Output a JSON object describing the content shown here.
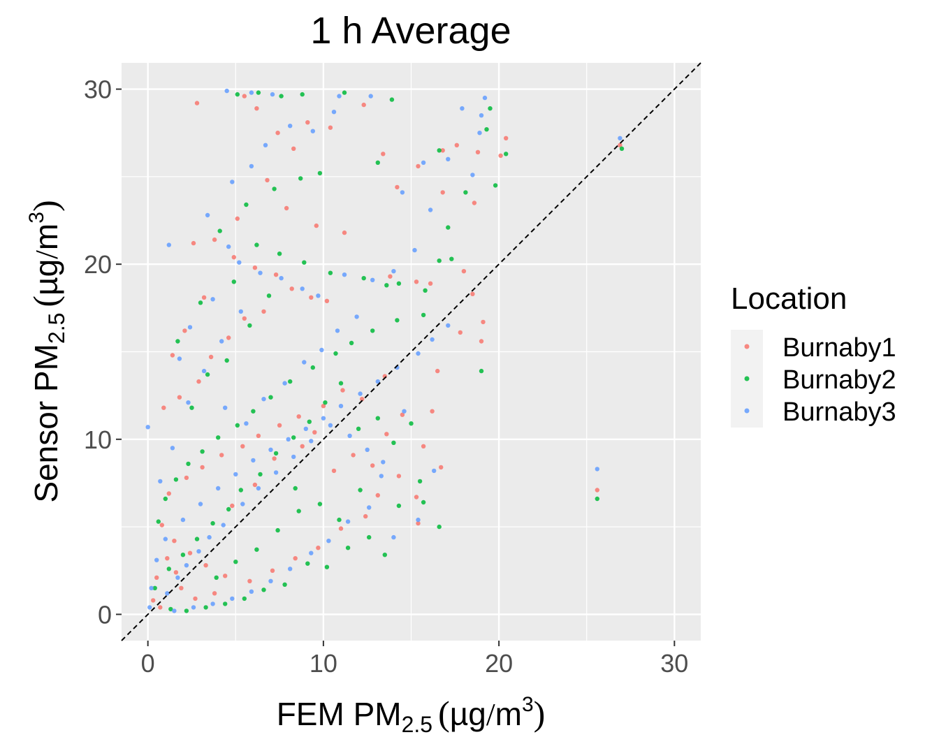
{
  "chart_data": {
    "type": "scatter",
    "title": "1 h Average",
    "xlabel": {
      "prefix": "FEM PM",
      "sub": "2.5",
      "unit_open": "(",
      "unit_body": "µg",
      "unit_slash": "/",
      "unit_base": "m",
      "unit_sup": "3",
      "unit_close": ")"
    },
    "ylabel": {
      "prefix": "Sensor PM",
      "sub": "2.5",
      "unit_open": "(",
      "unit_body": "µg",
      "unit_slash": "/",
      "unit_base": "m",
      "unit_sup": "3",
      "unit_close": ")"
    },
    "xlim": [
      -1.5,
      31.5
    ],
    "ylim": [
      -1.5,
      31.5
    ],
    "x_ticks": [
      0,
      10,
      20,
      30
    ],
    "y_ticks": [
      0,
      10,
      20,
      30
    ],
    "x_tick_labels": [
      "0",
      "10",
      "20",
      "30"
    ],
    "y_tick_labels": [
      "0",
      "10",
      "20",
      "30"
    ],
    "grid": true,
    "reference_line": {
      "slope": 1,
      "intercept": 0,
      "style": "dashed",
      "color": "#000000"
    },
    "legend": {
      "title": "Location",
      "placement": "right",
      "entries": [
        "Burnaby1",
        "Burnaby2",
        "Burnaby3"
      ]
    },
    "series": [
      {
        "name": "Burnaby1",
        "color": "#F8766D",
        "points": [
          [
            2.8,
            29.2
          ],
          [
            5.5,
            29.6
          ],
          [
            6.2,
            28.9
          ],
          [
            7.4,
            27.5
          ],
          [
            8.3,
            26.6
          ],
          [
            9.1,
            28.1
          ],
          [
            10.4,
            27.8
          ],
          [
            12.3,
            29.1
          ],
          [
            13.4,
            26.3
          ],
          [
            17.6,
            26.8
          ],
          [
            18.8,
            26.4
          ],
          [
            20.4,
            27.2
          ],
          [
            20.1,
            26.2
          ],
          [
            16.8,
            26.5
          ],
          [
            15.4,
            25.6
          ],
          [
            14.2,
            24.4
          ],
          [
            16.8,
            24.1
          ],
          [
            18.6,
            23.5
          ],
          [
            6.8,
            24.8
          ],
          [
            7.9,
            23.2
          ],
          [
            9.6,
            22.2
          ],
          [
            11.2,
            21.8
          ],
          [
            5.1,
            22.6
          ],
          [
            3.8,
            21.4
          ],
          [
            2.6,
            21.2
          ],
          [
            4.9,
            20.4
          ],
          [
            6.1,
            19.8
          ],
          [
            7.3,
            19.4
          ],
          [
            8.2,
            18.6
          ],
          [
            9.3,
            18.1
          ],
          [
            10.2,
            17.9
          ],
          [
            13.8,
            19.3
          ],
          [
            15.3,
            19.0
          ],
          [
            16.1,
            18.9
          ],
          [
            18.0,
            19.6
          ],
          [
            18.5,
            18.3
          ],
          [
            17.8,
            16.1
          ],
          [
            19.1,
            16.7
          ],
          [
            19.0,
            15.6
          ],
          [
            16.5,
            13.9
          ],
          [
            16.2,
            11.6
          ],
          [
            15.7,
            9.6
          ],
          [
            15.3,
            6.7
          ],
          [
            15.4,
            5.2
          ],
          [
            16.7,
            8.4
          ],
          [
            13.5,
            13.6
          ],
          [
            12.2,
            12.3
          ],
          [
            11.1,
            12.8
          ],
          [
            10.0,
            11.9
          ],
          [
            8.6,
            11.3
          ],
          [
            7.5,
            10.8
          ],
          [
            6.3,
            10.2
          ],
          [
            5.4,
            9.6
          ],
          [
            4.2,
            9.1
          ],
          [
            3.1,
            8.4
          ],
          [
            2.2,
            7.8
          ],
          [
            1.2,
            6.9
          ],
          [
            0.8,
            5.1
          ],
          [
            1.5,
            4.2
          ],
          [
            2.4,
            3.5
          ],
          [
            3.3,
            2.8
          ],
          [
            4.4,
            2.2
          ],
          [
            5.8,
            1.9
          ],
          [
            7.1,
            2.5
          ],
          [
            8.4,
            3.2
          ],
          [
            9.7,
            3.8
          ],
          [
            11.0,
            4.9
          ],
          [
            12.4,
            5.6
          ],
          [
            13.1,
            6.8
          ],
          [
            14.3,
            7.9
          ],
          [
            1.8,
            12.4
          ],
          [
            2.9,
            13.3
          ],
          [
            3.6,
            14.7
          ],
          [
            4.6,
            15.8
          ],
          [
            5.5,
            16.9
          ],
          [
            6.6,
            17.3
          ],
          [
            3.2,
            18.1
          ],
          [
            2.1,
            16.2
          ],
          [
            1.4,
            14.8
          ],
          [
            0.9,
            11.8
          ],
          [
            25.6,
            7.1
          ],
          [
            26.9,
            26.8
          ],
          [
            0.5,
            2.1
          ],
          [
            1.1,
            3.2
          ],
          [
            1.9,
            1.5
          ],
          [
            2.7,
            0.9
          ],
          [
            3.8,
            1.2
          ],
          [
            0.3,
            0.8
          ],
          [
            0.7,
            0.4
          ],
          [
            1.6,
            2.4
          ],
          [
            4.8,
            6.2
          ],
          [
            6.1,
            7.4
          ],
          [
            7.2,
            8.9
          ],
          [
            8.8,
            9.6
          ],
          [
            9.5,
            10.4
          ],
          [
            10.6,
            8.2
          ],
          [
            11.7,
            9.1
          ],
          [
            12.8,
            8.5
          ],
          [
            13.6,
            10.3
          ],
          [
            14.5,
            11.4
          ]
        ]
      },
      {
        "name": "Burnaby2",
        "color": "#00BA38",
        "points": [
          [
            5.1,
            29.7
          ],
          [
            6.3,
            29.8
          ],
          [
            7.6,
            29.6
          ],
          [
            8.8,
            29.7
          ],
          [
            11.2,
            29.8
          ],
          [
            13.9,
            29.4
          ],
          [
            19.5,
            28.9
          ],
          [
            19.3,
            27.7
          ],
          [
            16.6,
            26.5
          ],
          [
            20.4,
            26.3
          ],
          [
            19.8,
            24.5
          ],
          [
            18.1,
            24.1
          ],
          [
            17.1,
            22.1
          ],
          [
            13.1,
            25.8
          ],
          [
            9.8,
            25.2
          ],
          [
            8.7,
            24.9
          ],
          [
            7.2,
            24.3
          ],
          [
            5.6,
            23.4
          ],
          [
            4.1,
            21.9
          ],
          [
            6.2,
            21.1
          ],
          [
            7.5,
            20.6
          ],
          [
            8.9,
            20.1
          ],
          [
            10.4,
            19.5
          ],
          [
            12.3,
            19.2
          ],
          [
            13.6,
            18.8
          ],
          [
            14.3,
            18.9
          ],
          [
            15.8,
            18.5
          ],
          [
            16.6,
            20.2
          ],
          [
            17.3,
            20.3
          ],
          [
            15.7,
            17.1
          ],
          [
            14.2,
            16.8
          ],
          [
            12.8,
            16.2
          ],
          [
            11.6,
            15.5
          ],
          [
            10.7,
            14.9
          ],
          [
            9.4,
            14.1
          ],
          [
            8.1,
            13.3
          ],
          [
            7.0,
            12.4
          ],
          [
            6.0,
            11.6
          ],
          [
            5.1,
            10.8
          ],
          [
            4.0,
            10.1
          ],
          [
            3.1,
            9.3
          ],
          [
            2.3,
            8.6
          ],
          [
            1.6,
            7.7
          ],
          [
            1.0,
            6.6
          ],
          [
            0.6,
            5.3
          ],
          [
            19.0,
            13.9
          ],
          [
            16.6,
            5.0
          ],
          [
            15.7,
            6.4
          ],
          [
            15.5,
            7.6
          ],
          [
            14.3,
            6.2
          ],
          [
            13.5,
            3.4
          ],
          [
            12.6,
            4.4
          ],
          [
            11.4,
            3.8
          ],
          [
            10.2,
            2.7
          ],
          [
            9.1,
            2.9
          ],
          [
            7.8,
            1.7
          ],
          [
            6.6,
            1.4
          ],
          [
            5.5,
            0.9
          ],
          [
            4.4,
            0.6
          ],
          [
            3.3,
            0.4
          ],
          [
            2.2,
            0.2
          ],
          [
            1.3,
            0.3
          ],
          [
            25.6,
            6.6
          ],
          [
            27.0,
            26.6
          ],
          [
            0.4,
            1.5
          ],
          [
            1.2,
            2.6
          ],
          [
            2.0,
            3.4
          ],
          [
            2.8,
            4.3
          ],
          [
            3.7,
            5.2
          ],
          [
            4.6,
            6.0
          ],
          [
            5.3,
            7.1
          ],
          [
            6.4,
            8.0
          ],
          [
            7.3,
            9.2
          ],
          [
            8.3,
            10.1
          ],
          [
            9.2,
            11.0
          ],
          [
            10.1,
            12.1
          ],
          [
            11.0,
            13.2
          ],
          [
            12.0,
            10.6
          ],
          [
            13.1,
            11.2
          ],
          [
            14.0,
            9.8
          ],
          [
            15.0,
            10.9
          ],
          [
            2.5,
            11.8
          ],
          [
            3.4,
            13.7
          ],
          [
            4.5,
            14.5
          ],
          [
            5.8,
            16.5
          ],
          [
            6.9,
            18.2
          ],
          [
            3.0,
            17.8
          ],
          [
            1.7,
            15.6
          ],
          [
            4.9,
            19.0
          ],
          [
            8.4,
            7.2
          ],
          [
            9.8,
            6.3
          ],
          [
            10.9,
            5.4
          ],
          [
            12.1,
            7.1
          ],
          [
            6.2,
            3.7
          ],
          [
            7.4,
            4.8
          ],
          [
            8.6,
            5.9
          ],
          [
            3.9,
            2.1
          ],
          [
            5.0,
            3.0
          ]
        ]
      },
      {
        "name": "Burnaby3",
        "color": "#619CFF",
        "points": [
          [
            4.5,
            29.9
          ],
          [
            5.9,
            29.8
          ],
          [
            7.1,
            29.7
          ],
          [
            10.9,
            29.6
          ],
          [
            12.7,
            29.6
          ],
          [
            19.2,
            29.5
          ],
          [
            17.9,
            28.9
          ],
          [
            19.0,
            28.5
          ],
          [
            18.9,
            27.5
          ],
          [
            15.7,
            25.8
          ],
          [
            17.1,
            26.0
          ],
          [
            18.5,
            25.1
          ],
          [
            14.5,
            24.1
          ],
          [
            16.1,
            23.1
          ],
          [
            10.6,
            28.7
          ],
          [
            9.4,
            27.6
          ],
          [
            8.1,
            27.9
          ],
          [
            6.7,
            26.8
          ],
          [
            5.9,
            25.6
          ],
          [
            4.8,
            24.7
          ],
          [
            3.4,
            22.8
          ],
          [
            4.6,
            21.0
          ],
          [
            1.2,
            21.1
          ],
          [
            5.2,
            20.1
          ],
          [
            6.4,
            19.5
          ],
          [
            7.6,
            19.2
          ],
          [
            8.8,
            18.6
          ],
          [
            9.7,
            18.2
          ],
          [
            11.2,
            19.4
          ],
          [
            12.8,
            19.1
          ],
          [
            14.0,
            19.6
          ],
          [
            15.2,
            20.8
          ],
          [
            17.1,
            16.5
          ],
          [
            16.2,
            15.7
          ],
          [
            15.4,
            14.9
          ],
          [
            14.2,
            14.1
          ],
          [
            13.1,
            13.3
          ],
          [
            12.1,
            12.6
          ],
          [
            11.0,
            11.9
          ],
          [
            10.0,
            11.2
          ],
          [
            9.0,
            10.6
          ],
          [
            8.0,
            10.0
          ],
          [
            7.0,
            9.4
          ],
          [
            6.0,
            8.8
          ],
          [
            5.0,
            8.0
          ],
          [
            4.0,
            7.2
          ],
          [
            3.0,
            6.3
          ],
          [
            2.0,
            5.4
          ],
          [
            1.0,
            4.3
          ],
          [
            0.5,
            3.1
          ],
          [
            0.2,
            1.5
          ],
          [
            0.1,
            0.4
          ],
          [
            0.0,
            10.7
          ],
          [
            0.7,
            7.6
          ],
          [
            1.4,
            9.5
          ],
          [
            2.3,
            12.1
          ],
          [
            3.2,
            13.9
          ],
          [
            4.2,
            15.6
          ],
          [
            5.3,
            17.3
          ],
          [
            3.7,
            18.0
          ],
          [
            2.4,
            16.4
          ],
          [
            1.8,
            14.6
          ],
          [
            25.6,
            8.3
          ],
          [
            26.9,
            27.2
          ],
          [
            16.3,
            8.2
          ],
          [
            15.4,
            5.4
          ],
          [
            14.0,
            4.4
          ],
          [
            13.3,
            7.9
          ],
          [
            12.6,
            6.1
          ],
          [
            11.4,
            5.3
          ],
          [
            10.3,
            4.2
          ],
          [
            9.3,
            3.5
          ],
          [
            8.1,
            2.6
          ],
          [
            7.0,
            1.9
          ],
          [
            5.9,
            1.3
          ],
          [
            4.8,
            0.9
          ],
          [
            3.7,
            0.6
          ],
          [
            2.6,
            0.4
          ],
          [
            1.5,
            0.2
          ],
          [
            1.1,
            1.2
          ],
          [
            1.7,
            2.1
          ],
          [
            2.2,
            2.8
          ],
          [
            2.9,
            3.6
          ],
          [
            3.5,
            4.4
          ],
          [
            4.3,
            5.1
          ],
          [
            5.4,
            6.3
          ],
          [
            6.3,
            7.2
          ],
          [
            7.3,
            8.1
          ],
          [
            8.3,
            9.0
          ],
          [
            9.3,
            9.9
          ],
          [
            10.4,
            10.8
          ],
          [
            11.5,
            10.2
          ],
          [
            12.5,
            9.4
          ],
          [
            13.4,
            8.7
          ],
          [
            14.6,
            11.6
          ],
          [
            6.6,
            12.3
          ],
          [
            7.8,
            13.2
          ],
          [
            8.9,
            14.4
          ],
          [
            9.9,
            15.1
          ],
          [
            10.8,
            16.2
          ],
          [
            11.9,
            17.0
          ],
          [
            5.6,
            10.9
          ],
          [
            4.4,
            11.8
          ]
        ]
      }
    ]
  }
}
